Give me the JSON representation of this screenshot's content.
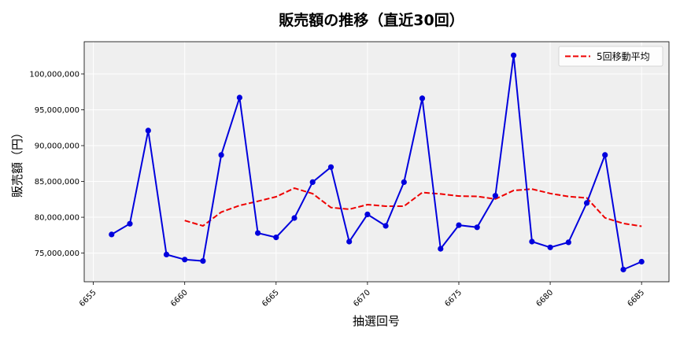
{
  "chart_data": {
    "type": "line",
    "title": "販売額の推移（直近30回）",
    "xlabel": "抽選回号",
    "ylabel": "販売額（円）",
    "xlim": [
      6654.5,
      6686.5
    ],
    "ylim": [
      71000000,
      104500000
    ],
    "x_ticks": [
      6655,
      6660,
      6665,
      6670,
      6675,
      6680,
      6685
    ],
    "y_ticks": [
      75000000,
      80000000,
      85000000,
      90000000,
      95000000,
      100000000
    ],
    "y_tick_labels": [
      "75,000,000",
      "80,000,000",
      "85,000,000",
      "90,000,000",
      "95,000,000",
      "100,000,000"
    ],
    "grid": true,
    "legend_position": "top-right",
    "x": [
      6656,
      6657,
      6658,
      6659,
      6660,
      6661,
      6662,
      6663,
      6664,
      6665,
      6666,
      6667,
      6668,
      6669,
      6670,
      6671,
      6672,
      6673,
      6674,
      6675,
      6676,
      6677,
      6678,
      6679,
      6680,
      6681,
      6682,
      6683,
      6684,
      6685
    ],
    "series": [
      {
        "color": "#0000dd",
        "style": "solid",
        "marker": "circle",
        "values": [
          77600000,
          79100000,
          92100000,
          74800000,
          74100000,
          73900000,
          88700000,
          96700000,
          77800000,
          77200000,
          79900000,
          84900000,
          87000000,
          76600000,
          80400000,
          78800000,
          84900000,
          96600000,
          75600000,
          78900000,
          78600000,
          83000000,
          102600000,
          76600000,
          75800000,
          76500000,
          82000000,
          88700000,
          72700000,
          73800000
        ]
      },
      {
        "name": "5回移動平均",
        "color": "#ee0000",
        "style": "dashed",
        "values": [
          null,
          null,
          null,
          null,
          79540000,
          78800000,
          80720000,
          81640000,
          82240000,
          82860000,
          84060000,
          83300000,
          81360000,
          81120000,
          81760000,
          81540000,
          81540000,
          83460000,
          83260000,
          82960000,
          82920000,
          82540000,
          83740000,
          83940000,
          83320000,
          82900000,
          82700000,
          79920000,
          79140000,
          78740000
        ]
      }
    ]
  }
}
